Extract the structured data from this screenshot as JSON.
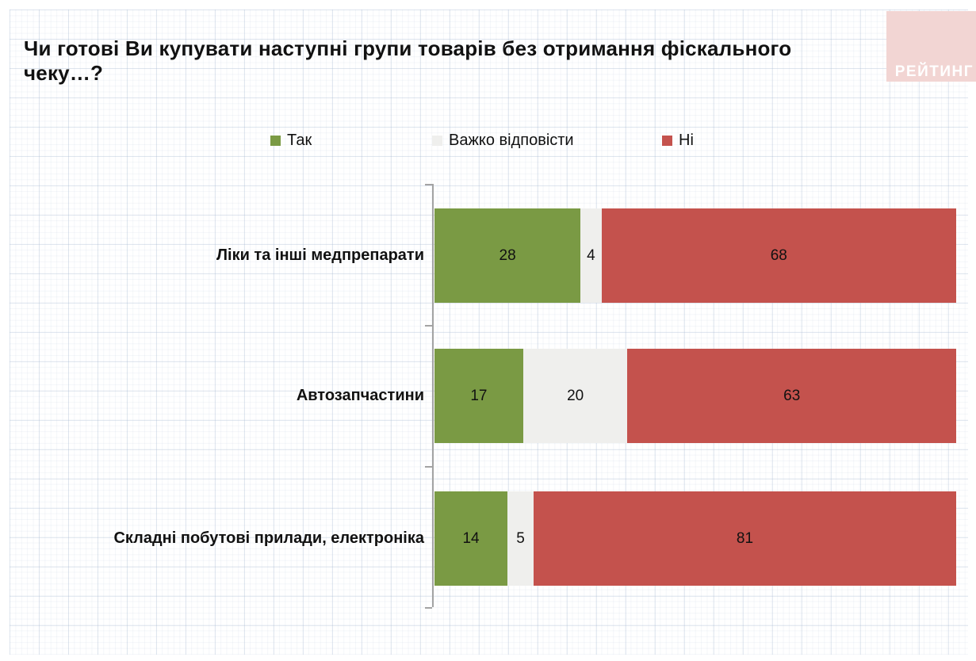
{
  "title": "Чи готові Ви купувати наступні групи товарів без отримання фіскального чеку…?",
  "logo": {
    "text": "РЕЙТИНГ",
    "bg_color": "#f2d5d3",
    "text_color": "#ffffff"
  },
  "chart_data": {
    "type": "bar",
    "orientation": "horizontal",
    "stacked": true,
    "unit": "percent",
    "title": "Чи готові Ви купувати наступні групи товарів без отримання фіскального чеку…?",
    "categories": [
      "Ліки та інші медпрепарати",
      "Автозапчастини",
      "Складні побутові прилади, електроніка"
    ],
    "series": [
      {
        "name": "Так",
        "key": "yes",
        "color": "#7a9a44",
        "values": [
          28,
          17,
          14
        ]
      },
      {
        "name": "Важко відповісти",
        "key": "hard-to-say",
        "color": "#efefed",
        "values": [
          4,
          20,
          5
        ]
      },
      {
        "name": "Ні",
        "key": "no",
        "color": "#c4524d",
        "values": [
          68,
          63,
          81
        ]
      }
    ],
    "xlim": [
      0,
      100
    ],
    "legend_position": "top",
    "value_labels": "inside",
    "axis_color": "#a3a3a3"
  }
}
